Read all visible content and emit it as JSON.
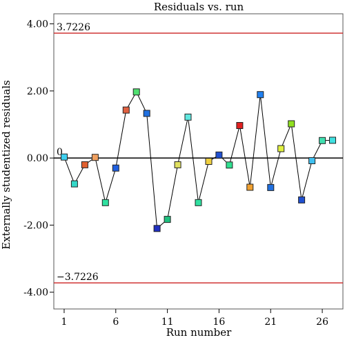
{
  "chart_data": {
    "type": "scatter",
    "title": "Residuals vs. run",
    "xlabel": "Run number",
    "ylabel": "Externally studentized residuals",
    "xlim": [
      0,
      28
    ],
    "ylim": [
      -4.5,
      4.3
    ],
    "x_ticks": [
      "1",
      "6",
      "11",
      "16",
      "21",
      "26"
    ],
    "y_ticks": [
      "-4.00",
      "-2.00",
      "0.00",
      "2.00",
      "4.00"
    ],
    "reference_lines": [
      {
        "label": "3.7226",
        "value": 3.7226,
        "color": "#cc2020"
      },
      {
        "label": "0",
        "value": 0,
        "color": "#000000"
      },
      {
        "label": "−3.7226",
        "value": -3.7226,
        "color": "#cc2020"
      }
    ],
    "grid": false,
    "connected": true,
    "series": [
      {
        "x": [
          1,
          2,
          3,
          4,
          5,
          6,
          7,
          8,
          9,
          10,
          11,
          12,
          13,
          14,
          15,
          16,
          17,
          18,
          19,
          20,
          21,
          22,
          23,
          24,
          25,
          26,
          27
        ],
        "values": [
          0.03,
          -0.77,
          -0.2,
          0.02,
          -1.33,
          -0.3,
          1.43,
          1.97,
          1.33,
          -2.1,
          -1.83,
          -0.2,
          1.22,
          -1.33,
          -0.1,
          0.09,
          -0.21,
          0.97,
          -0.87,
          1.89,
          -0.88,
          0.28,
          1.02,
          -1.25,
          -0.08,
          0.52,
          0.53
        ],
        "colors": [
          "#3fd0f0",
          "#35d8c8",
          "#e06030",
          "#f0a060",
          "#30e0a0",
          "#2060e0",
          "#e06040",
          "#50e070",
          "#2070e0",
          "#2030c0",
          "#20c080",
          "#e0e060",
          "#60e8e0",
          "#30e0a0",
          "#f0d040",
          "#2050d0",
          "#30e090",
          "#e02020",
          "#f0a030",
          "#2080f0",
          "#2070e0",
          "#e0f040",
          "#90e020",
          "#2050d0",
          "#40c0f0",
          "#40e0b0",
          "#40e0e0"
        ]
      }
    ]
  }
}
